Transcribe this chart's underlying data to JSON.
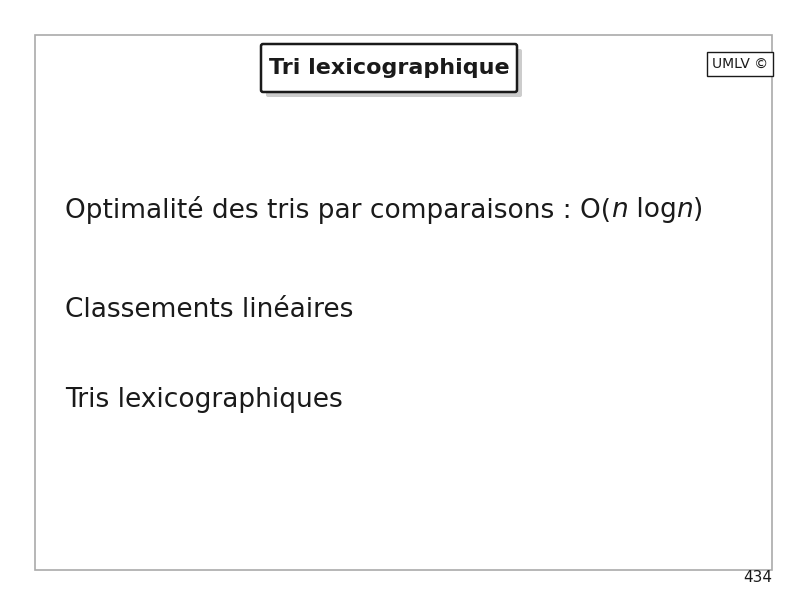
{
  "title": "Tri lexicographique",
  "umlv_label": "UMLV ©",
  "line2": "Classements linéaires",
  "line3": "Tris lexicographiques",
  "page_number": "434",
  "bg_color": "#ffffff",
  "border_color": "#aaaaaa",
  "text_color": "#1a1a1a",
  "shadow_color": "#cccccc",
  "title_fontsize": 16,
  "body_fontsize": 19,
  "umlv_fontsize": 10,
  "page_fontsize": 11
}
